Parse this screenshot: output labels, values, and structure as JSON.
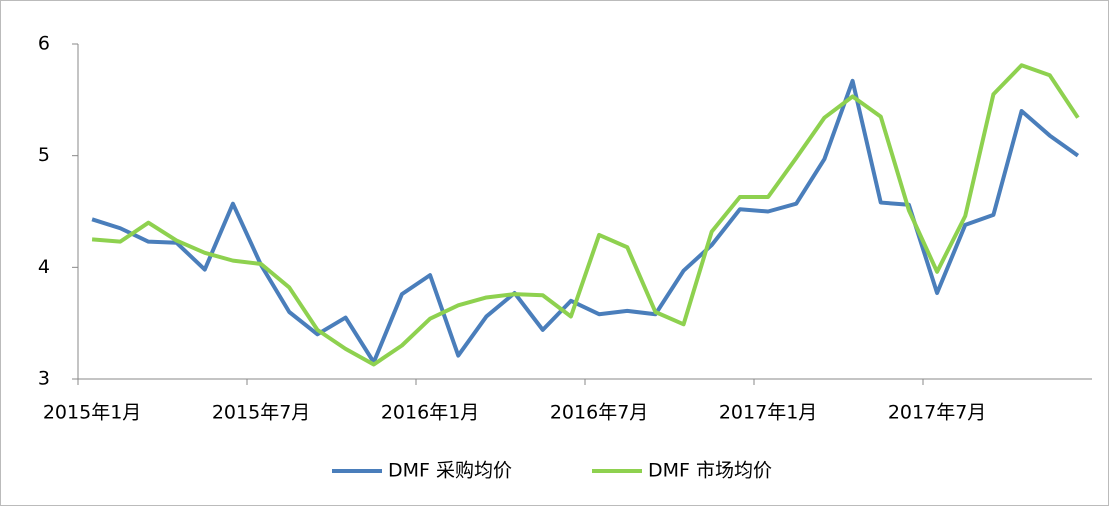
{
  "chart_data": {
    "type": "line",
    "categories": [
      "2015年1月",
      null,
      null,
      null,
      null,
      null,
      "2015年7月",
      null,
      null,
      null,
      null,
      null,
      "2016年1月",
      null,
      null,
      null,
      null,
      null,
      "2016年7月",
      null,
      null,
      null,
      null,
      null,
      "2017年1月",
      null,
      null,
      null,
      null,
      null,
      "2017年7月",
      null,
      null,
      null,
      null,
      null
    ],
    "series": [
      {
        "name": "DMF 采购均价",
        "color": "#4a7ebb",
        "values": [
          4.43,
          4.35,
          4.23,
          4.22,
          3.98,
          4.57,
          4.02,
          3.6,
          3.4,
          3.55,
          3.15,
          3.76,
          3.93,
          3.21,
          3.56,
          3.77,
          3.44,
          3.7,
          3.58,
          3.61,
          3.58,
          3.97,
          4.2,
          4.52,
          4.5,
          4.57,
          4.97,
          5.67,
          4.58,
          4.56,
          3.77,
          4.38,
          4.47,
          5.4,
          5.18,
          5.0
        ]
      },
      {
        "name": "DMF 市场均价",
        "color": "#8ed14f",
        "values": [
          4.25,
          4.23,
          4.4,
          4.24,
          4.13,
          4.06,
          4.03,
          3.82,
          3.44,
          3.27,
          3.13,
          3.3,
          3.54,
          3.66,
          3.73,
          3.76,
          3.75,
          3.56,
          4.29,
          4.18,
          3.6,
          3.49,
          4.32,
          4.63,
          4.63,
          4.98,
          5.34,
          5.53,
          5.35,
          4.51,
          3.96,
          4.46,
          5.55,
          5.81,
          5.72,
          5.34
        ]
      }
    ],
    "ylim": [
      3,
      6
    ],
    "yticks": [
      3,
      4,
      5,
      6
    ],
    "grid": false,
    "legend": "bottom"
  }
}
